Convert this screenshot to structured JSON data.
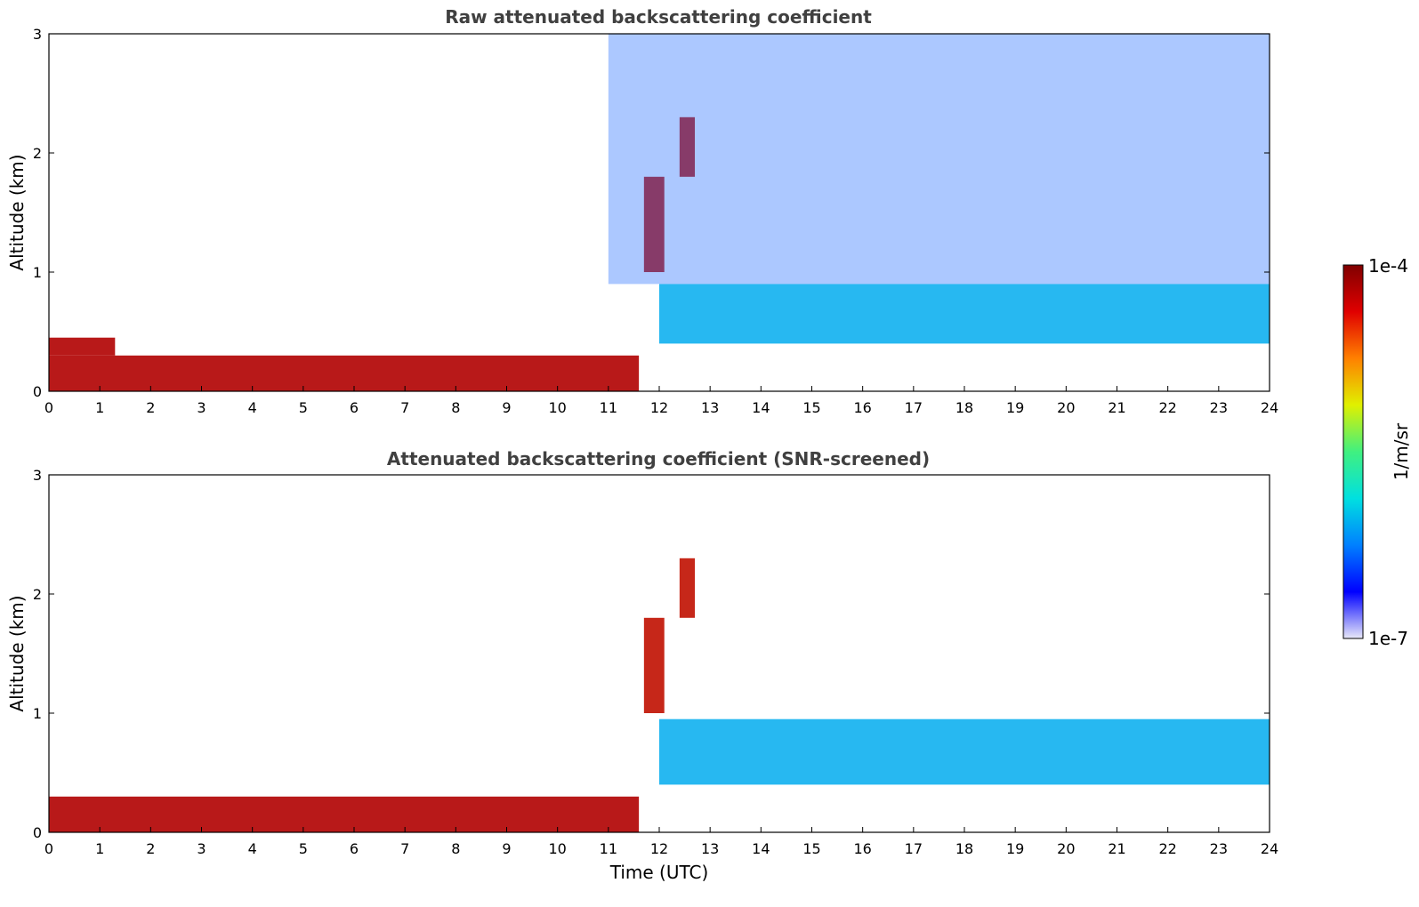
{
  "chart_data": [
    {
      "type": "heatmap",
      "title": "Raw attenuated backscattering coefficient",
      "ylabel": "Altitude (km)",
      "xlabel": "",
      "xlim": [
        0,
        24
      ],
      "ylim": [
        0,
        3
      ],
      "xticks": [
        "0",
        "1",
        "2",
        "3",
        "4",
        "5",
        "6",
        "7",
        "8",
        "9",
        "10",
        "11",
        "12",
        "13",
        "14",
        "15",
        "16",
        "17",
        "18",
        "19",
        "20",
        "21",
        "22",
        "23",
        "24"
      ],
      "yticks": [
        "0",
        "1",
        "2",
        "3"
      ],
      "features": [
        {
          "feature": "aerosol-boundary-layer",
          "t_start": 0,
          "t_end": 11.6,
          "alt_low": 0.0,
          "alt_high": 0.3,
          "level": "high"
        },
        {
          "feature": "residual-layer",
          "t_start": 0,
          "t_end": 1.3,
          "alt_low": 0.3,
          "alt_high": 0.45,
          "level": "high"
        },
        {
          "feature": "cloud",
          "t_start": 11.7,
          "t_end": 12.1,
          "alt_low": 1.0,
          "alt_high": 1.8,
          "level": "very-high"
        },
        {
          "feature": "cloud",
          "t_start": 12.4,
          "t_end": 12.7,
          "alt_low": 1.8,
          "alt_high": 2.3,
          "level": "very-high"
        },
        {
          "feature": "boundary-layer-top",
          "t_start": 12,
          "t_end": 24,
          "alt_low": 0.4,
          "alt_high": 0.9,
          "level": "medium"
        },
        {
          "feature": "noise",
          "t_start": 11,
          "t_end": 24,
          "alt_low": 0.9,
          "alt_high": 3.0,
          "level": "low"
        }
      ]
    },
    {
      "type": "heatmap",
      "title": "Attenuated backscattering coefficient (SNR-screened)",
      "ylabel": "Altitude (km)",
      "xlabel": "Time (UTC)",
      "xlim": [
        0,
        24
      ],
      "ylim": [
        0,
        3
      ],
      "xticks": [
        "0",
        "1",
        "2",
        "3",
        "4",
        "5",
        "6",
        "7",
        "8",
        "9",
        "10",
        "11",
        "12",
        "13",
        "14",
        "15",
        "16",
        "17",
        "18",
        "19",
        "20",
        "21",
        "22",
        "23",
        "24"
      ],
      "yticks": [
        "0",
        "1",
        "2",
        "3"
      ],
      "features": [
        {
          "feature": "aerosol-boundary-layer",
          "t_start": 0,
          "t_end": 11.6,
          "alt_low": 0.0,
          "alt_high": 0.3,
          "level": "high"
        },
        {
          "feature": "cloud",
          "t_start": 11.7,
          "t_end": 12.1,
          "alt_low": 1.0,
          "alt_high": 1.8,
          "level": "very-high"
        },
        {
          "feature": "cloud",
          "t_start": 12.4,
          "t_end": 12.7,
          "alt_low": 1.8,
          "alt_high": 2.3,
          "level": "very-high"
        },
        {
          "feature": "boundary-layer-top",
          "t_start": 12,
          "t_end": 24,
          "alt_low": 0.4,
          "alt_high": 0.95,
          "level": "medium"
        }
      ]
    }
  ],
  "colorbar": {
    "label": "1/m/sr",
    "max_label": "1e-4",
    "min_label": "1e-7",
    "colors": [
      "#e8e8f8",
      "#0000ff",
      "#0080ff",
      "#00e0e0",
      "#40f080",
      "#e0f000",
      "#ff8000",
      "#e00000",
      "#800000"
    ]
  }
}
